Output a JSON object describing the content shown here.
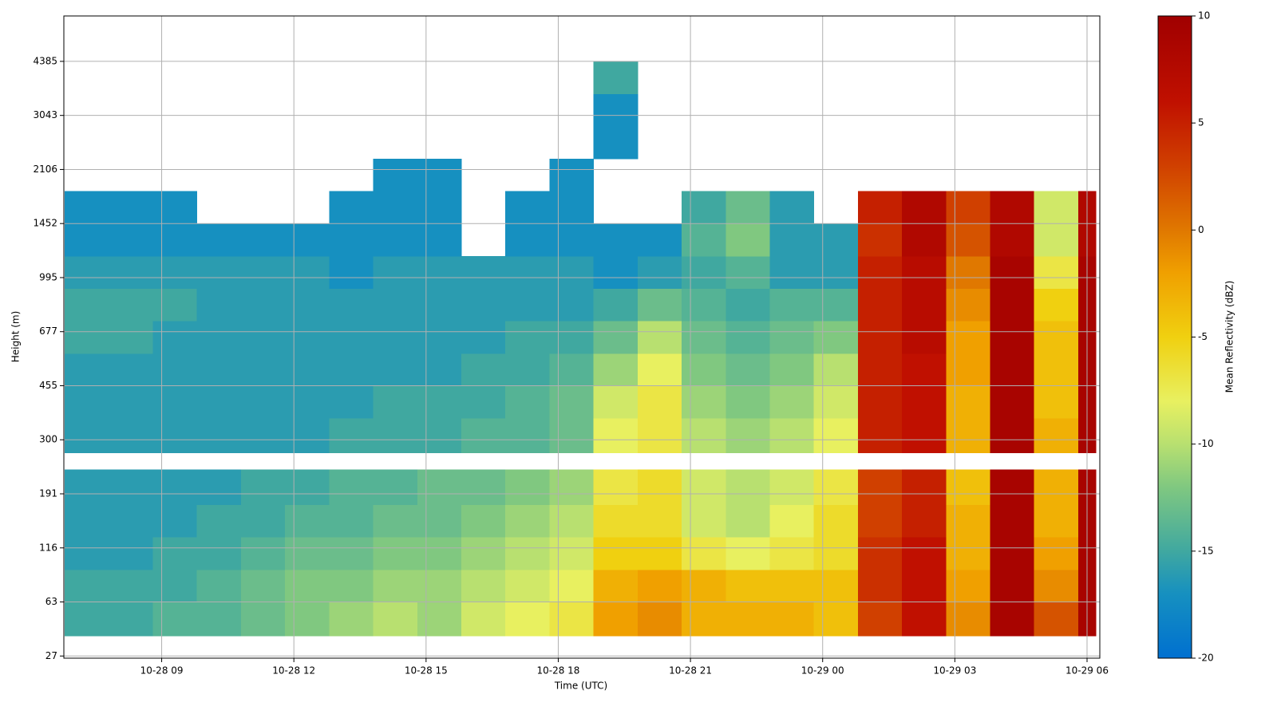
{
  "chart_data": {
    "type": "heatmap",
    "xlabel": "Time (UTC)",
    "ylabel": "Height (m)",
    "colorbar_label": "Mean Reflectivity (dBZ)",
    "xlim": [
      6.78,
      30.29
    ],
    "xticks": [
      {
        "value": 9,
        "label": "10-28 09"
      },
      {
        "value": 12,
        "label": "10-28 12"
      },
      {
        "value": 15,
        "label": "10-28 15"
      },
      {
        "value": 18,
        "label": "10-28 18"
      },
      {
        "value": 21,
        "label": "10-28 21"
      },
      {
        "value": 24,
        "label": "10-29 00"
      },
      {
        "value": 27,
        "label": "10-29 03"
      },
      {
        "value": 30,
        "label": "10-29 06"
      }
    ],
    "ylim": [
      -0.04,
      11.84
    ],
    "yticks": [
      {
        "value": 0,
        "label": "27"
      },
      {
        "value": 1,
        "label": "63"
      },
      {
        "value": 2,
        "label": "116"
      },
      {
        "value": 3,
        "label": "191"
      },
      {
        "value": 4,
        "label": "300"
      },
      {
        "value": 5,
        "label": "455"
      },
      {
        "value": 6,
        "label": "677"
      },
      {
        "value": 7,
        "label": "995"
      },
      {
        "value": 8,
        "label": "1452"
      },
      {
        "value": 9,
        "label": "2106"
      },
      {
        "value": 10,
        "label": "3043"
      },
      {
        "value": 11,
        "label": "4385"
      }
    ],
    "grid": true,
    "x_bins": [
      6.8,
      7.8,
      8.8,
      9.8,
      10.8,
      11.8,
      12.8,
      13.8,
      14.8,
      15.8,
      16.8,
      17.8,
      18.8,
      19.8,
      20.8,
      21.8,
      22.8,
      23.8,
      24.8,
      25.8,
      26.8,
      27.8,
      28.8,
      29.8,
      30.2
    ],
    "y_bins": [
      0.37,
      1.0,
      1.6,
      2.2,
      2.8,
      3.45,
      3.76,
      4.4,
      5.0,
      5.6,
      6.2,
      6.8,
      7.4,
      8.0,
      8.6,
      9.2,
      9.8,
      10.4,
      11.0
    ],
    "z": [
      [
        -15,
        -15,
        -14,
        -14,
        -13,
        -12,
        -11,
        -10,
        -11,
        -9,
        -8,
        -7,
        -2,
        -1,
        -3,
        -3,
        -3,
        -4,
        3,
        6,
        -1,
        9,
        2,
        9
      ],
      [
        -15,
        -15,
        -15,
        -14,
        -13,
        -12,
        -12,
        -11,
        -11,
        -10,
        -9,
        -8,
        -3,
        -2,
        -3,
        -4,
        -4,
        -4,
        4,
        6,
        -2,
        9,
        -1,
        9
      ],
      [
        -16,
        -16,
        -15,
        -15,
        -14,
        -13,
        -13,
        -12,
        -12,
        -11,
        -10,
        -9,
        -5,
        -5,
        -7,
        -8,
        -7,
        -6,
        4,
        6,
        -3,
        9,
        -2,
        9
      ],
      [
        -16,
        -16,
        -16,
        -15,
        -15,
        -14,
        -14,
        -13,
        -13,
        -12,
        -11,
        -10,
        -6,
        -6,
        -9,
        -10,
        -8,
        -6,
        3,
        5,
        -3,
        9,
        -3,
        9
      ],
      [
        -16,
        -16,
        -16,
        -16,
        -15,
        -15,
        -14,
        -14,
        -13,
        -13,
        -12,
        -11,
        -7,
        -6,
        -9,
        -10,
        -9,
        -7,
        3,
        5,
        -4,
        9,
        -3,
        9
      ],
      [
        null,
        null,
        null,
        null,
        null,
        null,
        null,
        null,
        null,
        null,
        null,
        null,
        null,
        null,
        null,
        null,
        null,
        null,
        null,
        null,
        null,
        null,
        null,
        null
      ],
      [
        -16,
        -16,
        -16,
        -16,
        -16,
        -16,
        -15,
        -15,
        -15,
        -14,
        -14,
        -13,
        -8,
        -7,
        -10,
        -11,
        -10,
        -8,
        5,
        6,
        -3,
        9,
        -3,
        9
      ],
      [
        -16,
        -16,
        -16,
        -16,
        -16,
        -16,
        -16,
        -15,
        -15,
        -15,
        -14,
        -13,
        -9,
        -7,
        -11,
        -12,
        -11,
        -9,
        5,
        6,
        -3,
        9,
        -4,
        9
      ],
      [
        -16,
        -16,
        -16,
        -16,
        -16,
        -16,
        -16,
        -16,
        -16,
        -15,
        -15,
        -14,
        -11,
        -8,
        -12,
        -13,
        -12,
        -10,
        5,
        6,
        -2,
        9,
        -4,
        9
      ],
      [
        -15,
        -15,
        -16,
        -16,
        -16,
        -16,
        -16,
        -16,
        -16,
        -16,
        -15,
        -15,
        -13,
        -10,
        -13,
        -14,
        -13,
        -12,
        5,
        7,
        -2,
        9,
        -4,
        9
      ],
      [
        -15,
        -15,
        -15,
        -16,
        -16,
        -16,
        -16,
        -16,
        -16,
        -16,
        -16,
        -16,
        -15,
        -13,
        -14,
        -15,
        -14,
        -14,
        5,
        7,
        -1,
        9,
        -5,
        9
      ],
      [
        -16,
        -16,
        -16,
        -16,
        -16,
        -16,
        -17,
        -16,
        -16,
        -16,
        -16,
        -16,
        -17,
        -16,
        -15,
        -14,
        -16,
        -16,
        5,
        7,
        0,
        9,
        -7,
        9
      ],
      [
        -17,
        -17,
        -17,
        -17,
        -17,
        -17,
        -17,
        -17,
        -17,
        null,
        -17,
        -17,
        -17,
        -17,
        -14,
        -12,
        -16,
        -16,
        4,
        8,
        2,
        8,
        -9,
        8
      ],
      [
        -17,
        -17,
        -17,
        null,
        null,
        null,
        -17,
        -17,
        -17,
        null,
        -17,
        -17,
        null,
        null,
        -15,
        -13,
        -16,
        null,
        5,
        8,
        3,
        8,
        -9,
        8
      ],
      [
        null,
        null,
        null,
        null,
        null,
        null,
        null,
        -17,
        -17,
        null,
        null,
        -17,
        null,
        null,
        null,
        null,
        null,
        null,
        null,
        null,
        null,
        null,
        null,
        null
      ],
      [
        null,
        null,
        null,
        null,
        null,
        null,
        null,
        null,
        null,
        null,
        null,
        null,
        -17,
        null,
        null,
        null,
        null,
        null,
        null,
        null,
        null,
        null,
        null,
        null
      ],
      [
        null,
        null,
        null,
        null,
        null,
        null,
        null,
        null,
        null,
        null,
        null,
        null,
        -17,
        null,
        null,
        null,
        null,
        null,
        null,
        null,
        null,
        null,
        null,
        null
      ],
      [
        null,
        null,
        null,
        null,
        null,
        null,
        null,
        null,
        null,
        null,
        null,
        null,
        -15,
        null,
        null,
        null,
        null,
        null,
        null,
        null,
        null,
        null,
        null,
        null
      ]
    ],
    "clim": [
      -20,
      10
    ],
    "cticks": [
      -20,
      -15,
      -10,
      -5,
      0,
      5,
      10
    ],
    "colormap": [
      {
        "value": -20,
        "color": "#0070d0"
      },
      {
        "value": -17,
        "color": "#1690c0"
      },
      {
        "value": -15,
        "color": "#40a8a0"
      },
      {
        "value": -12,
        "color": "#80c880"
      },
      {
        "value": -10,
        "color": "#b8e070"
      },
      {
        "value": -8,
        "color": "#e8f060"
      },
      {
        "value": -5,
        "color": "#f0d010"
      },
      {
        "value": -2,
        "color": "#f0a000"
      },
      {
        "value": 0,
        "color": "#e07800"
      },
      {
        "value": 3,
        "color": "#d04000"
      },
      {
        "value": 6,
        "color": "#c01000"
      },
      {
        "value": 10,
        "color": "#a00000"
      }
    ]
  }
}
